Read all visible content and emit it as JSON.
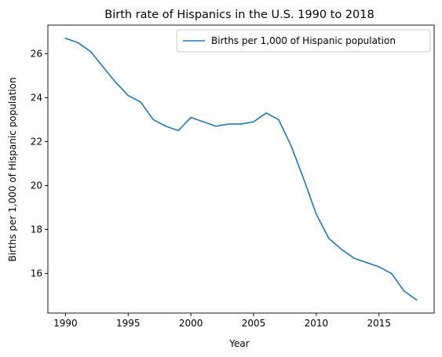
{
  "chart_data": {
    "type": "line",
    "title": "Birth rate of Hispanics in the U.S. 1990 to 2018",
    "xlabel": "Year",
    "ylabel": "Births per 1,000 of Hispanic population",
    "xlim": [
      1988.6,
      2019.4
    ],
    "ylim": [
      14.2,
      27.3
    ],
    "xticks": [
      1990,
      1995,
      2000,
      2005,
      2010,
      2015
    ],
    "yticks": [
      16,
      18,
      20,
      22,
      24,
      26
    ],
    "grid": false,
    "legend_position": "top-right",
    "series": [
      {
        "name": "Births per 1,000 of Hispanic population",
        "color": "#1f77b4",
        "x": [
          1990,
          1991,
          1992,
          1993,
          1994,
          1995,
          1996,
          1997,
          1998,
          1999,
          2000,
          2001,
          2002,
          2003,
          2004,
          2005,
          2006,
          2007,
          2008,
          2009,
          2010,
          2011,
          2012,
          2013,
          2014,
          2015,
          2016,
          2017,
          2018
        ],
        "y": [
          26.7,
          26.5,
          26.1,
          25.4,
          24.7,
          24.1,
          23.8,
          23.0,
          22.7,
          22.5,
          23.1,
          22.9,
          22.7,
          22.8,
          22.8,
          22.9,
          23.3,
          23.0,
          21.8,
          20.3,
          18.7,
          17.6,
          17.1,
          16.7,
          16.5,
          16.3,
          16.0,
          15.2,
          14.8
        ]
      }
    ]
  }
}
